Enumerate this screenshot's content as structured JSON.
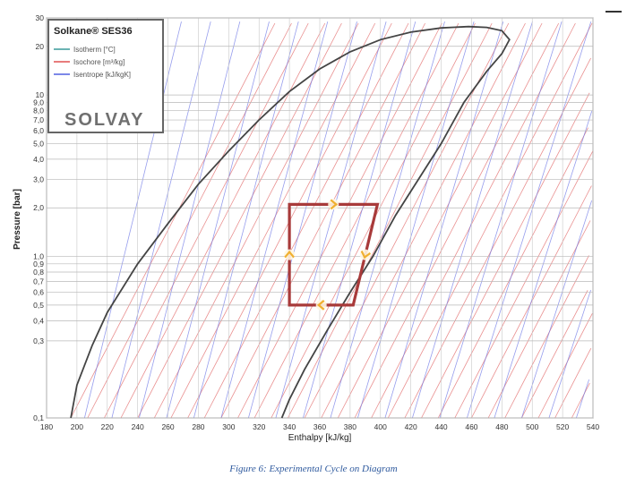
{
  "caption": "Figure 6: Experimental Cycle on Diagram",
  "chart_data": {
    "type": "line",
    "title": "",
    "xlabel": "Enthalpy [kJ/kg]",
    "ylabel": "Pressure [bar]",
    "xlim": [
      180,
      540
    ],
    "ylim": [
      0.1,
      30
    ],
    "y_scale": "log",
    "grid": true,
    "x_ticks": [
      "180",
      "200",
      "220",
      "240",
      "260",
      "280",
      "300",
      "320",
      "340",
      "360",
      "380",
      "400",
      "420",
      "440",
      "460",
      "480",
      "500",
      "520",
      "540"
    ],
    "y_ticks": [
      {
        "v": 0.1,
        "label": "0,1"
      },
      {
        "v": 0.3,
        "label": "0,3"
      },
      {
        "v": 0.4,
        "label": "0,4"
      },
      {
        "v": 0.5,
        "label": "0,5"
      },
      {
        "v": 0.6,
        "label": "0,6"
      },
      {
        "v": 0.7,
        "label": "0,7"
      },
      {
        "v": 0.8,
        "label": "0,8"
      },
      {
        "v": 0.9,
        "label": "0,9"
      },
      {
        "v": 1,
        "label": "1,0"
      },
      {
        "v": 2,
        "label": "2,0"
      },
      {
        "v": 3,
        "label": "3,0"
      },
      {
        "v": 4,
        "label": "4,0"
      },
      {
        "v": 5,
        "label": "5,0"
      },
      {
        "v": 6,
        "label": "6,0"
      },
      {
        "v": 7,
        "label": "7,0"
      },
      {
        "v": 8,
        "label": "8,0"
      },
      {
        "v": 9,
        "label": "9,0"
      },
      {
        "v": 10,
        "label": "10"
      },
      {
        "v": 20,
        "label": "20"
      },
      {
        "v": 30,
        "label": "30"
      }
    ],
    "legend": {
      "title": "Solkane® SES36",
      "placement": "top-left",
      "entries": [
        {
          "name": "Isotherm [°C]",
          "color": "#3a9a9a"
        },
        {
          "name": "Isochore [m³/kg]",
          "color": "#e05050"
        },
        {
          "name": "Isentrope [kJ/kgK]",
          "color": "#5060e0"
        }
      ],
      "brand": "SOLVAY"
    },
    "saturation_dome": {
      "color": "#444444",
      "liquid": [
        [
          196,
          0.1
        ],
        [
          200,
          0.16
        ],
        [
          210,
          0.28
        ],
        [
          220,
          0.45
        ],
        [
          240,
          0.9
        ],
        [
          260,
          1.6
        ],
        [
          280,
          2.8
        ],
        [
          300,
          4.5
        ],
        [
          320,
          7.0
        ],
        [
          340,
          10.5
        ],
        [
          360,
          14.5
        ],
        [
          380,
          18.5
        ],
        [
          400,
          22
        ],
        [
          420,
          24.5
        ],
        [
          440,
          26
        ],
        [
          458,
          26.5
        ]
      ],
      "vapor": [
        [
          458,
          26.5
        ],
        [
          470,
          26.2
        ],
        [
          480,
          25
        ],
        [
          485,
          22
        ],
        [
          480,
          18
        ],
        [
          470,
          14
        ],
        [
          455,
          9
        ],
        [
          440,
          5
        ],
        [
          425,
          3
        ],
        [
          410,
          1.8
        ],
        [
          395,
          1.0
        ],
        [
          380,
          0.6
        ],
        [
          365,
          0.35
        ],
        [
          350,
          0.2
        ],
        [
          340,
          0.13
        ],
        [
          335,
          0.1
        ]
      ]
    },
    "cycle": {
      "color": "#a83a3a",
      "points": [
        [
          340,
          2.1
        ],
        [
          398,
          2.1
        ],
        [
          382,
          0.5
        ],
        [
          340,
          0.5
        ]
      ],
      "direction_arrow_color": "#f0b030"
    }
  }
}
